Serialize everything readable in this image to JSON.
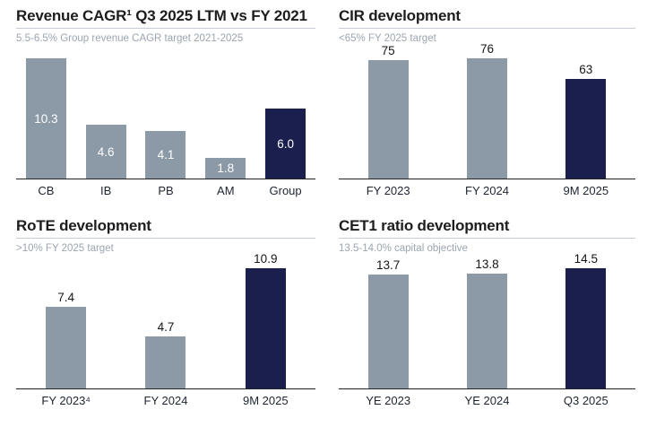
{
  "colors": {
    "bar_default": "#8C99A7",
    "bar_highlight": "#1A1F4D",
    "label_inside": "#ffffff",
    "label_above": "#16161a",
    "axis_line": "#222222",
    "title_text": "#1d1d1f",
    "subtitle_text": "#9ba5b0",
    "title_rule": "#c6ccd3",
    "tick_text": "#1e2531"
  },
  "chart_data": [
    {
      "id": "revenue-cagr",
      "type": "bar",
      "title": "Revenue CAGR¹ Q3 2025 LTM vs FY 2021",
      "subtitle": "5.5-6.5% Group revenue CAGR target 2021-2025",
      "categories": [
        "CB",
        "IB",
        "PB",
        "AM",
        "Group"
      ],
      "values": [
        10.3,
        4.6,
        4.1,
        1.8,
        6.0
      ],
      "value_labels": [
        "10.3",
        "4.6",
        "4.1",
        "1.8",
        "6.0"
      ],
      "highlight_index": 4,
      "label_position": "inside",
      "ylim": [
        0,
        10.3
      ],
      "grid": false,
      "legend": false
    },
    {
      "id": "cir-development",
      "type": "bar",
      "title": "CIR development",
      "subtitle": "<65% FY 2025 target",
      "categories": [
        "FY 2023",
        "FY 2024",
        "9M 2025"
      ],
      "values": [
        75,
        76,
        63
      ],
      "value_labels": [
        "75",
        "76",
        "63"
      ],
      "highlight_index": 2,
      "label_position": "above",
      "ylim": [
        0,
        76
      ],
      "grid": false,
      "legend": false
    },
    {
      "id": "rote-development",
      "type": "bar",
      "title": "RoTE development",
      "subtitle": ">10% FY 2025 target",
      "categories": [
        "FY 2023⁴",
        "FY 2024",
        "9M 2025"
      ],
      "values": [
        7.4,
        4.7,
        10.9
      ],
      "value_labels": [
        "7.4",
        "4.7",
        "10.9"
      ],
      "highlight_index": 2,
      "label_position": "above",
      "ylim": [
        0,
        10.9
      ],
      "grid": false,
      "legend": false
    },
    {
      "id": "cet1-ratio-development",
      "type": "bar",
      "title": "CET1 ratio development",
      "subtitle": "13.5-14.0% capital objective",
      "categories": [
        "YE 2023",
        "YE 2024",
        "Q3 2025"
      ],
      "values": [
        13.7,
        13.8,
        14.5
      ],
      "value_labels": [
        "13.7",
        "13.8",
        "14.5"
      ],
      "highlight_index": 2,
      "label_position": "above",
      "ylim": [
        0,
        14.5
      ],
      "grid": false,
      "legend": false
    }
  ]
}
